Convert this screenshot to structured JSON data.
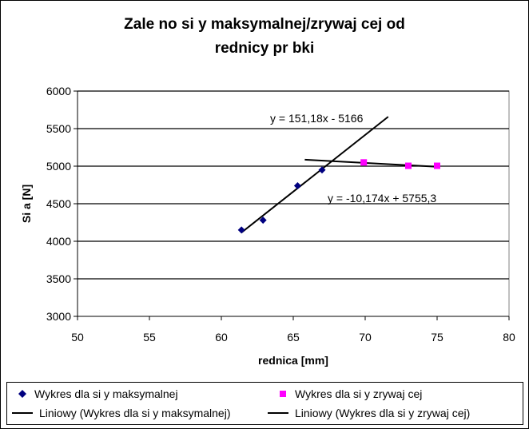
{
  "chart_data": {
    "type": "scatter",
    "title_line1": "Zale  no      si y maksymalnej/zrywaj  cej od",
    "title_line2": "rednicy pr   bki",
    "xlabel": "rednica [mm]",
    "ylabel": "Si  a [N]",
    "xlim": [
      50,
      80
    ],
    "ylim": [
      3000,
      6000
    ],
    "xticks": [
      50,
      55,
      60,
      65,
      70,
      75,
      80
    ],
    "yticks": [
      3000,
      3500,
      4000,
      4500,
      5000,
      5500,
      6000
    ],
    "grid": "horizontal",
    "legend_position": "bottom",
    "series": [
      {
        "name": "Wykres dla si y maksymalnej",
        "marker": "diamond",
        "color": "#000080",
        "points": [
          [
            61.4,
            4150
          ],
          [
            62.9,
            4280
          ],
          [
            65.3,
            4740
          ],
          [
            67.0,
            4950
          ]
        ]
      },
      {
        "name": "Wykres dla si y zrywaj  cej",
        "marker": "square",
        "color": "#ff00ff",
        "points": [
          [
            69.9,
            5050
          ],
          [
            73.0,
            5005
          ],
          [
            75.0,
            5005
          ]
        ]
      }
    ],
    "trendlines": [
      {
        "name": "Liniowy (Wykres dla si y maksymalnej)",
        "slope": 151.18,
        "intercept": -5166,
        "x_range": [
          61.4,
          71.6
        ],
        "equation": "y = 151,18x - 5166",
        "color": "#000000"
      },
      {
        "name": "Liniowy (Wykres dla si y zrywaj  cej)",
        "slope": -10.174,
        "intercept": 5755.3,
        "x_range": [
          65.8,
          75.0
        ],
        "equation": "y = -10,174x + 5755,3",
        "color": "#000000"
      }
    ]
  }
}
